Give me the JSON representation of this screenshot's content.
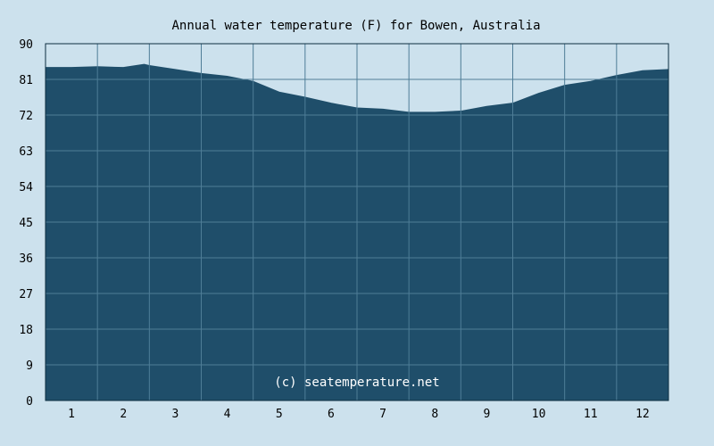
{
  "chart_data": {
    "type": "area",
    "title": "Annual water temperature (F) for Bowen, Australia",
    "xlabel": "",
    "ylabel": "",
    "ylim": [
      0,
      90
    ],
    "y_ticks": [
      0,
      9,
      18,
      27,
      36,
      45,
      54,
      63,
      72,
      81,
      90
    ],
    "x_range": [
      0.5,
      12.5
    ],
    "categories": [
      "1",
      "2",
      "3",
      "4",
      "5",
      "6",
      "7",
      "8",
      "9",
      "10",
      "11",
      "12"
    ],
    "grid": true,
    "series": [
      {
        "values_x": [
          0.5,
          1.0,
          1.5,
          2.0,
          2.4,
          2.5,
          3.0,
          3.5,
          4.0,
          4.5,
          5.0,
          5.5,
          6.0,
          6.5,
          7.0,
          7.5,
          8.0,
          8.5,
          9.0,
          9.5,
          10.0,
          10.5,
          11.0,
          11.5,
          12.0,
          12.5
        ],
        "values_y": [
          84.0,
          84.0,
          84.2,
          84.0,
          84.8,
          84.5,
          83.5,
          82.5,
          81.8,
          80.5,
          77.8,
          76.5,
          75.0,
          73.8,
          73.5,
          72.7,
          72.7,
          73.0,
          74.2,
          75.0,
          77.5,
          79.5,
          80.5,
          82.0,
          83.2,
          83.5
        ]
      }
    ],
    "annotation": "(c) seatemperature.net",
    "colors": {
      "background": "#cce1ed",
      "area": "#1f4e6a",
      "grid": "#4f7d97",
      "axis": "#0d2d40"
    }
  }
}
